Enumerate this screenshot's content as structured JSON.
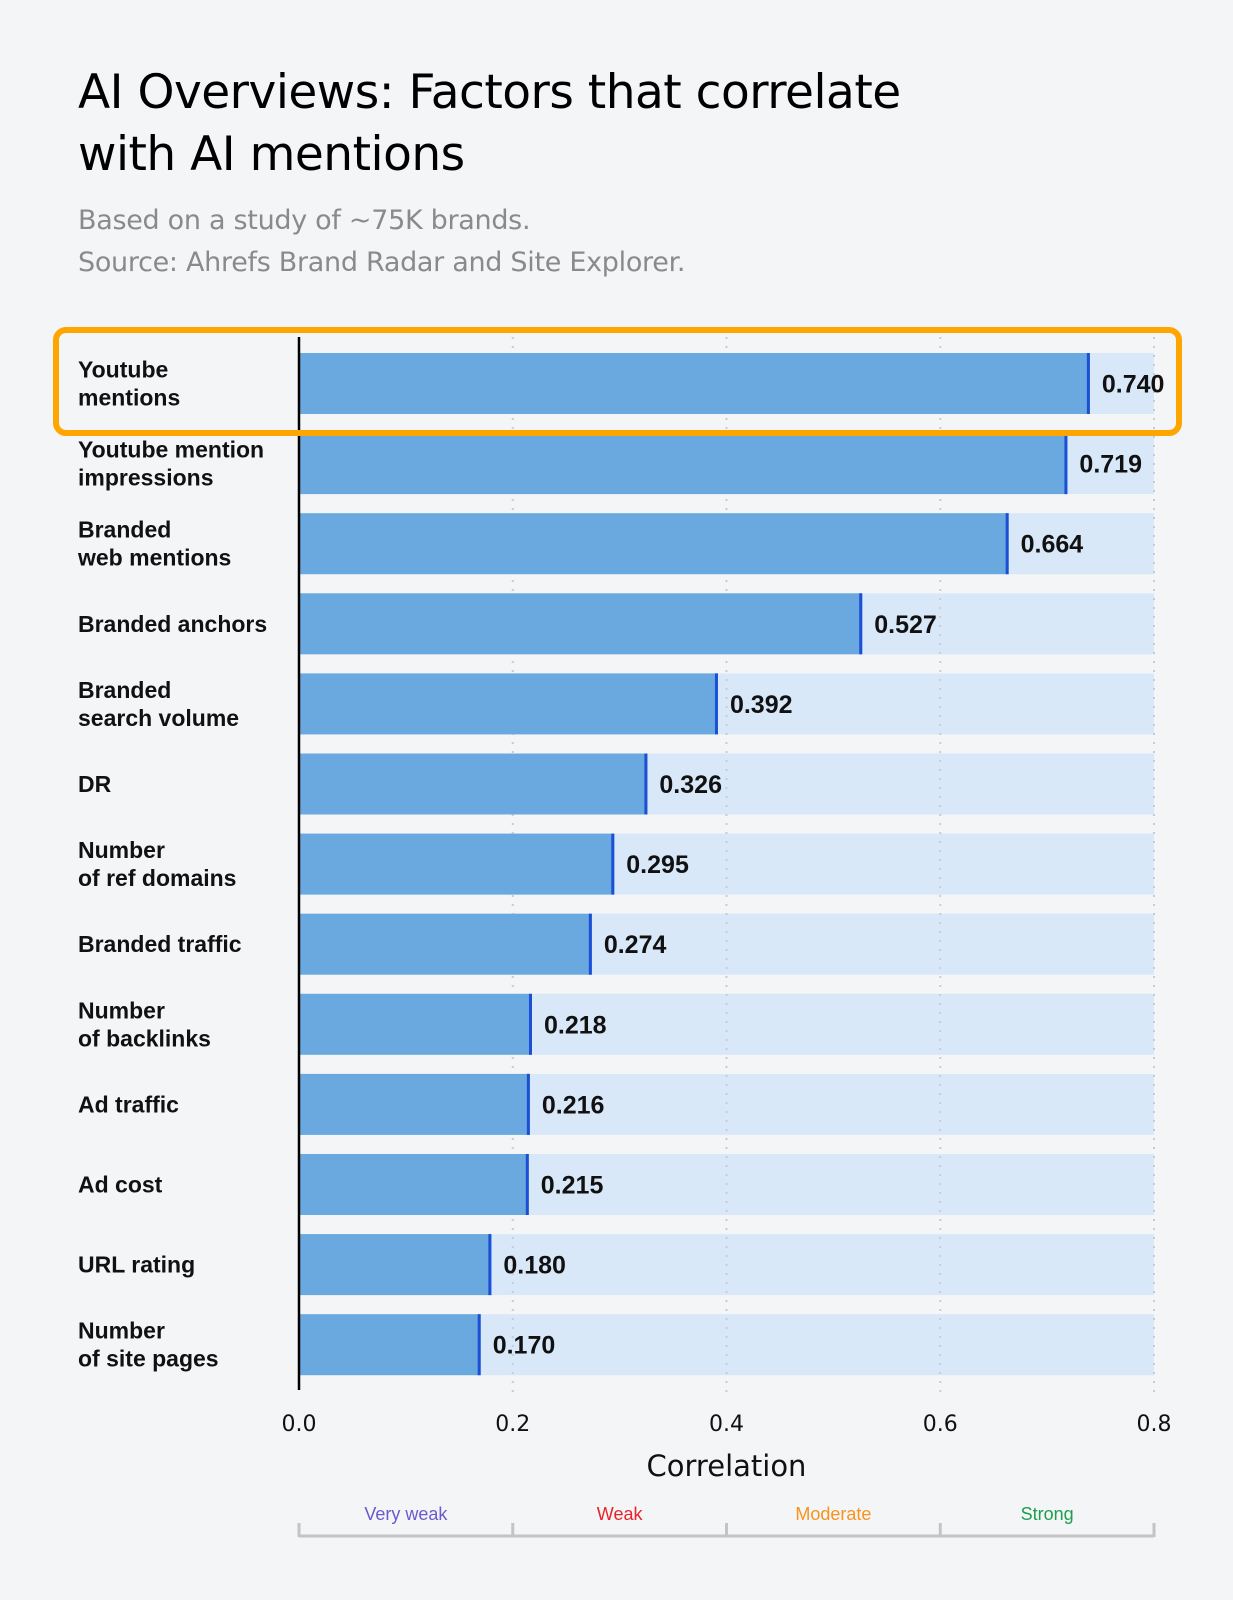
{
  "chart_data": {
    "type": "bar",
    "orientation": "horizontal",
    "title": "AI Overviews: Factors that correlate with AI mentions",
    "title_lines": [
      "AI Overviews: Factors that correlate",
      "with AI mentions"
    ],
    "subtitle": [
      "Based on a study of ~75K brands.",
      "Source: Ahrefs Brand Radar and Site Explorer."
    ],
    "categories": [
      [
        "Youtube",
        "mentions"
      ],
      [
        "Youtube mention",
        "impressions"
      ],
      [
        "Branded",
        "web mentions"
      ],
      [
        "Branded anchors"
      ],
      [
        "Branded",
        "search volume"
      ],
      [
        "DR"
      ],
      [
        "Number",
        "of ref domains"
      ],
      [
        "Branded traffic"
      ],
      [
        "Number",
        "of backlinks"
      ],
      [
        "Ad traffic"
      ],
      [
        "Ad cost"
      ],
      [
        "URL rating"
      ],
      [
        "Number",
        "of site pages"
      ]
    ],
    "values": [
      0.74,
      0.719,
      0.664,
      0.527,
      0.392,
      0.326,
      0.295,
      0.274,
      0.218,
      0.216,
      0.215,
      0.18,
      0.17
    ],
    "value_labels": [
      "0.740",
      "0.719",
      "0.664",
      "0.527",
      "0.392",
      "0.326",
      "0.295",
      "0.274",
      "0.218",
      "0.216",
      "0.215",
      "0.180",
      "0.170"
    ],
    "xlabel": "Correlation",
    "ylabel": "",
    "xlim": [
      0,
      0.8
    ],
    "xticks": [
      "0.0",
      "0.2",
      "0.4",
      "0.6",
      "0.8"
    ],
    "grid": "vertical dotted",
    "highlighted_category_index": 0,
    "strength_bands": [
      {
        "label": "Very weak",
        "range": [
          0.0,
          0.2
        ],
        "color": "#6a5acd"
      },
      {
        "label": "Weak",
        "range": [
          0.2,
          0.4
        ],
        "color": "#e8232a"
      },
      {
        "label": "Moderate",
        "range": [
          0.4,
          0.6
        ],
        "color": "#f7931e"
      },
      {
        "label": "Strong",
        "range": [
          0.6,
          0.8
        ],
        "color": "#1e9e4f"
      }
    ],
    "colors": {
      "bar": "#6aa9e0",
      "bar_track": "#d9e8f8",
      "bar_end": "#1a4fd6",
      "highlight": "#ffa500",
      "background": "#f4f5f7"
    }
  }
}
